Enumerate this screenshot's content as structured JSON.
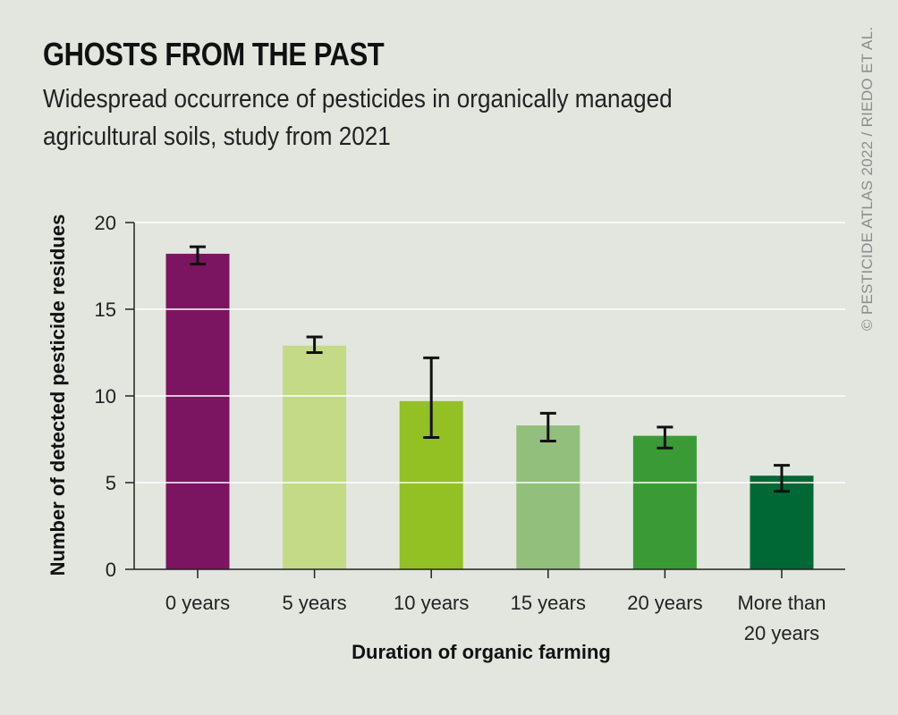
{
  "title": "GHOSTS FROM THE PAST",
  "subtitle": "Widespread occurrence of pesticides in organically managed agricultural soils, study from 2021",
  "credit": "© PESTICIDE ATLAS 2022 / RIEDO ET AL.",
  "chart_data": {
    "type": "bar",
    "xlabel": "Duration of organic farming",
    "ylabel": "Number of detected pesticide residues",
    "ylim": [
      0,
      20
    ],
    "yticks": [
      0,
      5,
      10,
      15,
      20
    ],
    "grid": true,
    "categories": [
      "0 years",
      "5 years",
      "10 years",
      "15 years",
      "20 years",
      "More than 20 years"
    ],
    "category_lines": [
      [
        "0 years"
      ],
      [
        "5 years"
      ],
      [
        "10 years"
      ],
      [
        "15 years"
      ],
      [
        "20 years"
      ],
      [
        "More than",
        "20 years"
      ]
    ],
    "values": [
      18.2,
      12.9,
      9.7,
      8.3,
      7.7,
      5.4
    ],
    "error_low": [
      17.6,
      12.5,
      7.6,
      7.4,
      7.0,
      4.5
    ],
    "error_high": [
      18.6,
      13.4,
      12.2,
      9.0,
      8.2,
      6.0
    ],
    "colors": [
      "#7b1561",
      "#c4da86",
      "#93c022",
      "#93bf7c",
      "#3a9b36",
      "#006834"
    ]
  }
}
